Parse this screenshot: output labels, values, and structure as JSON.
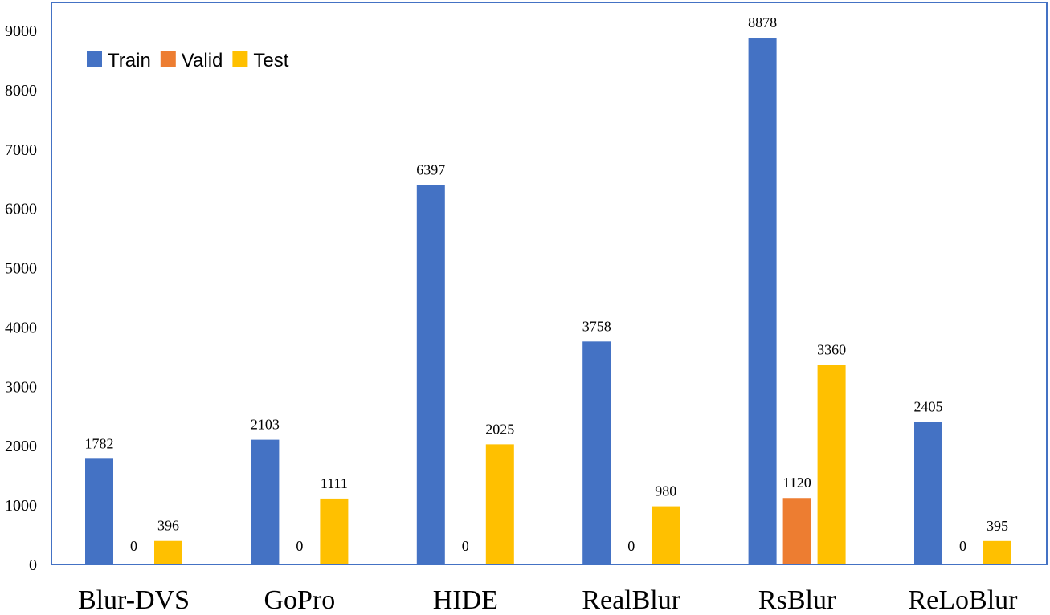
{
  "chart_data": {
    "type": "bar",
    "categories": [
      "Blur-DVS",
      "GoPro",
      "HIDE",
      "RealBlur",
      "RsBlur",
      "ReLoBlur"
    ],
    "series": [
      {
        "name": "Train",
        "color": "#4472C4",
        "values": [
          1782,
          2103,
          6397,
          3758,
          8878,
          2405
        ]
      },
      {
        "name": "Valid",
        "color": "#ED7D31",
        "values": [
          0,
          0,
          0,
          0,
          1120,
          0
        ]
      },
      {
        "name": "Test",
        "color": "#FFC000",
        "values": [
          396,
          1111,
          2025,
          980,
          3360,
          395
        ]
      }
    ],
    "yticks": [
      0,
      1000,
      2000,
      3000,
      4000,
      5000,
      6000,
      7000,
      8000,
      9000
    ],
    "ylim": [
      0,
      9000
    ],
    "grid": false,
    "legend_position": "top-left",
    "frame_color": "#4472C4"
  }
}
